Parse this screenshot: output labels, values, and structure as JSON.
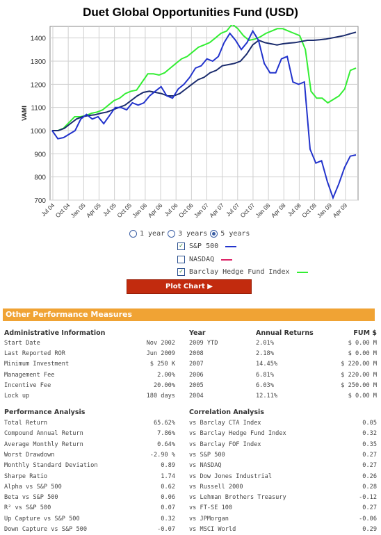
{
  "title": "Duet Global Opportunities Fund (USD)",
  "chart_data": {
    "type": "line",
    "ylabel": "VAMI",
    "ylim": [
      700,
      1450
    ],
    "yticks": [
      700,
      800,
      900,
      1000,
      1100,
      1200,
      1300,
      1400
    ],
    "xlabels": [
      "Jul 04",
      "Oct 04",
      "Jan 05",
      "Apr 05",
      "Jul 05",
      "Oct 05",
      "Jan 06",
      "Apr 06",
      "Jul 06",
      "Oct 06",
      "Jan 07",
      "Apr 07",
      "Jul 07",
      "Oct 07",
      "Jan 08",
      "Apr 08",
      "Jul 08",
      "Oct 08",
      "Jan 09",
      "Apr 09"
    ],
    "grid": true,
    "series": [
      {
        "name": "Duet Global Opportunities Fund",
        "color": "#1a2b6d",
        "values": [
          1000,
          1000,
          1010,
          1030,
          1050,
          1060,
          1065,
          1068,
          1075,
          1080,
          1090,
          1100,
          1110,
          1130,
          1150,
          1165,
          1170,
          1165,
          1160,
          1150,
          1150,
          1160,
          1180,
          1200,
          1220,
          1230,
          1250,
          1260,
          1280,
          1285,
          1290,
          1300,
          1330,
          1370,
          1390,
          1380,
          1375,
          1370,
          1375,
          1378,
          1380,
          1385,
          1390,
          1390,
          1392,
          1395,
          1400,
          1405,
          1410,
          1418,
          1425
        ]
      },
      {
        "name": "S&P 500",
        "color": "#2233cc",
        "values": [
          1000,
          965,
          970,
          985,
          1000,
          1050,
          1070,
          1050,
          1060,
          1030,
          1065,
          1100,
          1100,
          1090,
          1120,
          1110,
          1120,
          1150,
          1170,
          1190,
          1150,
          1140,
          1180,
          1200,
          1230,
          1270,
          1280,
          1310,
          1300,
          1320,
          1380,
          1420,
          1390,
          1350,
          1380,
          1430,
          1390,
          1290,
          1250,
          1250,
          1310,
          1320,
          1210,
          1200,
          1210,
          920,
          860,
          870,
          780,
          710,
          770,
          840,
          890,
          895
        ]
      },
      {
        "name": "Barclay Hedge Fund Index",
        "color": "#33ee33",
        "values": [
          1000,
          1000,
          1010,
          1035,
          1060,
          1060,
          1065,
          1075,
          1080,
          1090,
          1110,
          1130,
          1140,
          1160,
          1170,
          1175,
          1210,
          1245,
          1245,
          1240,
          1250,
          1270,
          1290,
          1310,
          1320,
          1340,
          1360,
          1370,
          1380,
          1400,
          1420,
          1430,
          1460,
          1440,
          1410,
          1390,
          1395,
          1405,
          1420,
          1430,
          1440,
          1440,
          1430,
          1420,
          1410,
          1350,
          1170,
          1140,
          1140,
          1120,
          1135,
          1150,
          1180,
          1260,
          1270
        ]
      }
    ]
  },
  "controls": {
    "periods": [
      "1 year",
      "3 years",
      "5 years"
    ],
    "legend": [
      {
        "label": "S&P 500",
        "checked": true,
        "color": "#2233cc"
      },
      {
        "label": "NASDAQ",
        "checked": false,
        "color": "#dd2266"
      },
      {
        "label": "Barclay Hedge Fund Index",
        "checked": true,
        "color": "#33ee33"
      }
    ],
    "plot_button": "Plot Chart ▶"
  },
  "section_title": "Other Performance Measures",
  "admin": {
    "header": "Administrative Information",
    "rows": [
      [
        "Start Date",
        "Nov 2002"
      ],
      [
        "Last Reported ROR",
        "Jun 2009"
      ],
      [
        "Minimum Investment",
        "$ 250 K"
      ],
      [
        "Management Fee",
        "2.00%"
      ],
      [
        "Incentive Fee",
        "20.00%"
      ],
      [
        "Lock up",
        "180 days"
      ]
    ]
  },
  "annual": {
    "headers": [
      "Year",
      "Annual Returns",
      "FUM $"
    ],
    "rows": [
      [
        "2009 YTD",
        "2.01%",
        "$ 0.00 M"
      ],
      [
        "2008",
        "2.18%",
        "$ 0.00 M"
      ],
      [
        "2007",
        "14.45%",
        "$ 220.00 M"
      ],
      [
        "2006",
        "6.81%",
        "$ 220.00 M"
      ],
      [
        "2005",
        "6.03%",
        "$ 250.00 M"
      ],
      [
        "2004",
        "12.11%",
        "$ 0.00 M"
      ]
    ]
  },
  "performance": {
    "header": "Performance Analysis",
    "rows": [
      [
        "Total Return",
        "65.62%"
      ],
      [
        "Compound Annual Return",
        "7.86%"
      ],
      [
        "Average Monthly Return",
        "0.64%"
      ],
      [
        "Worst Drawdown",
        "-2.90 %"
      ],
      [
        "Monthly Standard Deviation",
        "0.89"
      ],
      [
        "Sharpe Ratio",
        "1.74"
      ],
      [
        "Alpha vs S&P 500",
        "0.62"
      ],
      [
        "Beta vs S&P 500",
        "0.06"
      ],
      [
        "R² vs S&P 500",
        "0.07"
      ],
      [
        "Up Capture vs S&P 500",
        "0.32"
      ],
      [
        "Down Capture vs S&P 500",
        "-0.07"
      ]
    ]
  },
  "correlation": {
    "header": "Correlation Analysis",
    "rows": [
      [
        "vs Barclay CTA Index",
        "0.05"
      ],
      [
        "vs Barclay Hedge Fund Index",
        "0.32"
      ],
      [
        "vs Barclay FOF Index",
        "0.35"
      ],
      [
        "vs S&P 500",
        "0.27"
      ],
      [
        "vs NASDAQ",
        "0.27"
      ],
      [
        "vs Dow Jones Industrial",
        "0.26"
      ],
      [
        "vs Russell 2000",
        "0.28"
      ],
      [
        "vs Lehman Brothers Treasury",
        "-0.12"
      ],
      [
        "vs FT-SE 100",
        "0.27"
      ],
      [
        "vs JPMorgan",
        "-0.06"
      ],
      [
        "vs MSCI World",
        "0.29"
      ]
    ]
  }
}
